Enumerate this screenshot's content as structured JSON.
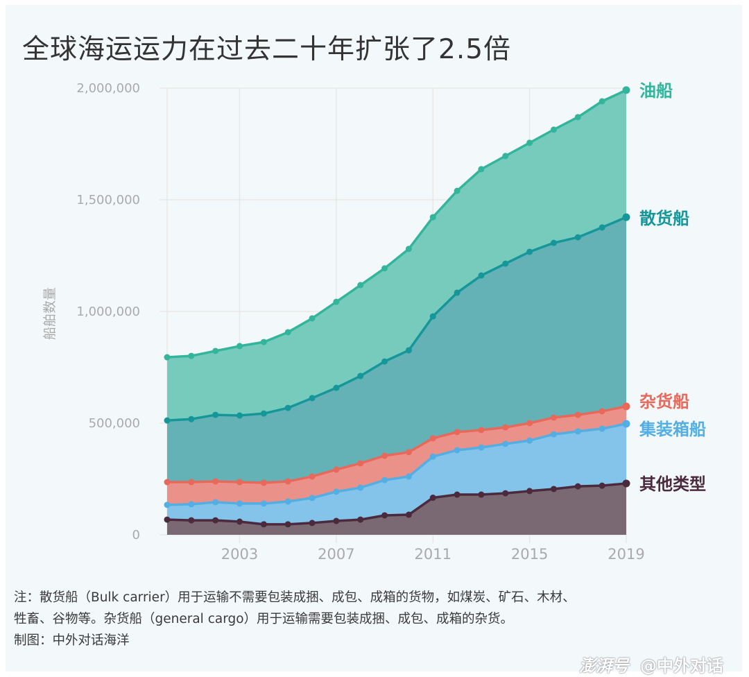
{
  "title": "全球海运运力在过去二十年扩张了2.5倍",
  "note": {
    "line1": "注：散货船（Bulk carrier）用于运输不需要包装成捆、成包、成箱的货物，如煤炭、矿石、木材、",
    "line2": "牲畜、谷物等。杂货船（general cargo）用于运输需要包装成捆、成包、成箱的杂货。",
    "line3": "制图：中外对话海洋"
  },
  "watermark": {
    "brand": "澎湃号",
    "account": "@中外对话"
  },
  "chart_data": {
    "type": "area",
    "stacked": true,
    "title": "全球海运运力在过去二十年扩张了2.5倍",
    "xlabel": "",
    "ylabel": "船舶数量",
    "x": [
      2000,
      2001,
      2002,
      2003,
      2004,
      2005,
      2006,
      2007,
      2008,
      2009,
      2010,
      2011,
      2012,
      2013,
      2014,
      2015,
      2016,
      2017,
      2018,
      2019
    ],
    "xticks": [
      "2003",
      "2007",
      "2011",
      "2015",
      "2019"
    ],
    "xtick_values": [
      2003,
      2007,
      2011,
      2015,
      2019
    ],
    "xlim": [
      2000,
      2019
    ],
    "ylim": [
      0,
      2000000
    ],
    "yticks": [
      0,
      500000,
      1000000,
      1500000,
      2000000
    ],
    "ytick_labels": [
      "0",
      "500,000",
      "1,000,000",
      "1,500,000",
      "2,000,000"
    ],
    "grid": true,
    "legend": "inline-right",
    "cumulative_series": [
      {
        "name": "其他类型",
        "color": "#4a2a3c",
        "fill": "#7a6973",
        "values": [
          68000,
          65000,
          65000,
          59000,
          47000,
          47000,
          53000,
          62000,
          68000,
          87000,
          90000,
          166000,
          180000,
          180000,
          186000,
          196000,
          205000,
          217000,
          220000,
          230000
        ]
      },
      {
        "name": "集装箱船",
        "color": "#52aee3",
        "fill": "#84c3ea",
        "values": [
          134000,
          137000,
          146000,
          140000,
          140000,
          149000,
          165000,
          193000,
          211000,
          245000,
          261000,
          350000,
          379000,
          391000,
          407000,
          422000,
          450000,
          463000,
          475000,
          497000
        ]
      },
      {
        "name": "杂货船",
        "color": "#e8685a",
        "fill": "#ea928a",
        "values": [
          236000,
          236000,
          239000,
          236000,
          233000,
          239000,
          261000,
          292000,
          320000,
          354000,
          370000,
          432000,
          460000,
          469000,
          481000,
          500000,
          525000,
          537000,
          553000,
          575000
        ]
      },
      {
        "name": "散货船",
        "color": "#15979a",
        "fill": "#64b2b6",
        "values": [
          512000,
          518000,
          537000,
          534000,
          543000,
          568000,
          612000,
          658000,
          711000,
          776000,
          826000,
          978000,
          1084000,
          1161000,
          1214000,
          1267000,
          1307000,
          1332000,
          1376000,
          1422000
        ]
      },
      {
        "name": "油船",
        "color": "#33b59c",
        "fill": "#76cbbd",
        "values": [
          795000,
          801000,
          823000,
          845000,
          863000,
          907000,
          969000,
          1043000,
          1118000,
          1193000,
          1280000,
          1422000,
          1540000,
          1637000,
          1696000,
          1755000,
          1814000,
          1870000,
          1941000,
          1991000
        ]
      }
    ],
    "series_note": "values are cumulative (stacked) totals read from the chart; each band = difference from the series below"
  }
}
